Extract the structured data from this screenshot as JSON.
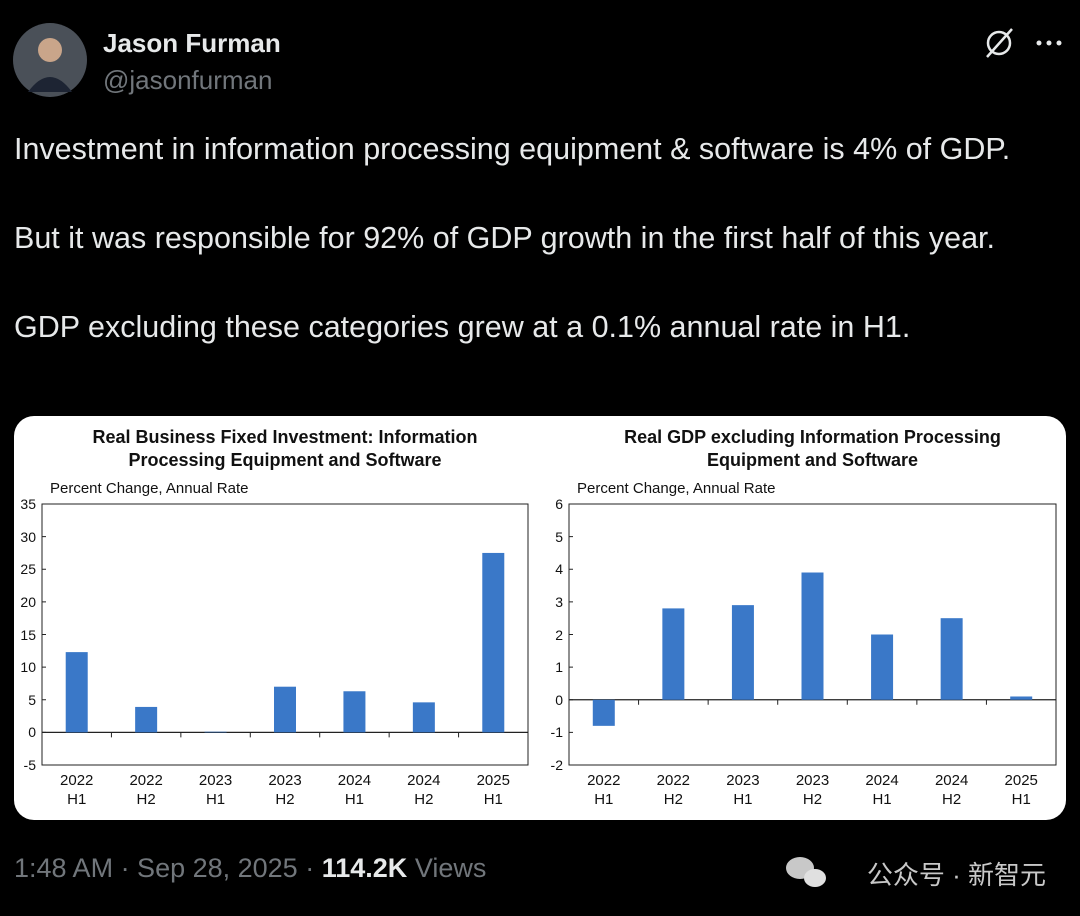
{
  "author": {
    "name": "Jason Furman",
    "handle": "@jasonfurman"
  },
  "tweet": {
    "paragraphs": [
      "Investment in information processing equipment & software is 4% of GDP.",
      "But it was responsible for 92% of GDP growth in the first half of this year.",
      "GDP excluding these categories grew at a 0.1% annual rate in H1."
    ]
  },
  "chart_data": [
    {
      "type": "bar",
      "title": "Real Business Fixed Investment: Information\nProcessing Equipment and Software",
      "subtitle": "Percent Change, Annual Rate",
      "categories": [
        "2022\nH1",
        "2022\nH2",
        "2023\nH1",
        "2023\nH2",
        "2024\nH1",
        "2024\nH2",
        "2025\nH1"
      ],
      "values": [
        12.3,
        3.9,
        0.1,
        7.0,
        6.3,
        4.6,
        27.5
      ],
      "color": "#3a78c8",
      "ylim": [
        -5,
        35
      ],
      "yticks": [
        -5,
        0,
        5,
        10,
        15,
        20,
        25,
        30,
        35
      ]
    },
    {
      "type": "bar",
      "title": "Real GDP excluding Information Processing\nEquipment and Software",
      "subtitle": "Percent Change, Annual Rate",
      "categories": [
        "2022\nH1",
        "2022\nH2",
        "2023\nH1",
        "2023\nH2",
        "2024\nH1",
        "2024\nH2",
        "2025\nH1"
      ],
      "values": [
        -0.8,
        2.8,
        2.9,
        3.9,
        2.0,
        2.5,
        0.1
      ],
      "color": "#3a78c8",
      "ylim": [
        -2,
        6
      ],
      "yticks": [
        -2,
        -1,
        0,
        1,
        2,
        3,
        4,
        5,
        6
      ]
    }
  ],
  "footer": {
    "time": "1:48 AM · Sep 28, 2025 ·",
    "views_count": "114.2K",
    "views_label": "Views",
    "watermark": "公众号 · 新智元"
  }
}
